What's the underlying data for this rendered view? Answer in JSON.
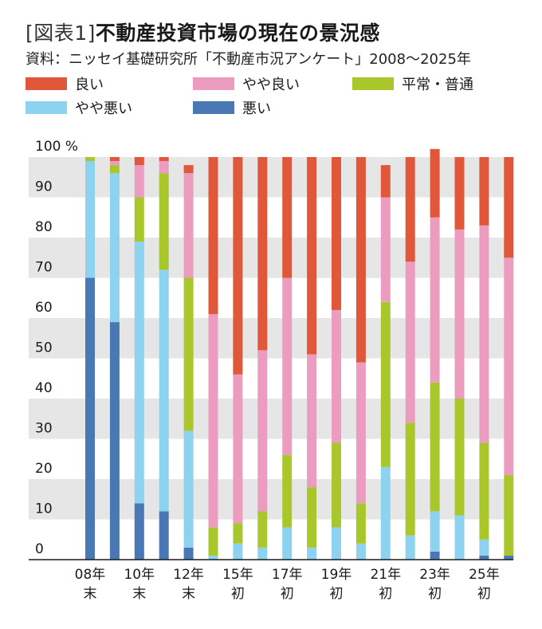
{
  "title": {
    "tag": "[図表1]",
    "main": "不動産投資市場の現在の景況感"
  },
  "source": "資料：ニッセイ基礎研究所「不動産市況アンケート」2008〜2025年",
  "colors": {
    "good": "#e0573a",
    "somewhat_good": "#ec9dbf",
    "normal": "#a9c72a",
    "somewhat_bad": "#8dd3ef",
    "bad": "#4a78b5",
    "band": "#e6e6e6"
  },
  "chart_data": {
    "type": "bar",
    "stacked": true,
    "y_unit": "%",
    "ylim": [
      0,
      100
    ],
    "yticks": [
      "0",
      "10",
      "20",
      "30",
      "40",
      "50",
      "60",
      "70",
      "80",
      "90",
      "100 %"
    ],
    "x_labels": [
      "08年\n末",
      "10年\n末",
      "12年\n末",
      "15年\n初",
      "17年\n初",
      "19年\n初",
      "21年\n初",
      "23年\n初",
      "25年\n初"
    ],
    "series": [
      {
        "key": "bad",
        "name": "悪い",
        "values": [
          70,
          59,
          14,
          12,
          3,
          0,
          0,
          0,
          0,
          0,
          0,
          0,
          0,
          0,
          2,
          0,
          1,
          1
        ]
      },
      {
        "key": "somewhat_bad",
        "name": "やや悪い",
        "values": [
          29,
          37,
          65,
          60,
          29,
          1,
          4,
          3,
          8,
          3,
          8,
          4,
          23,
          6,
          10,
          11,
          4,
          0
        ]
      },
      {
        "key": "normal",
        "name": "平常・普通",
        "values": [
          1,
          2,
          11,
          24,
          38,
          7,
          5,
          9,
          18,
          15,
          21,
          10,
          41,
          28,
          32,
          29,
          24,
          20
        ]
      },
      {
        "key": "somewhat_good",
        "name": "やや良い",
        "values": [
          0,
          1,
          8,
          3,
          26,
          53,
          37,
          40,
          44,
          33,
          33,
          35,
          26,
          40,
          41,
          42,
          54,
          54
        ]
      },
      {
        "key": "good",
        "name": "良い",
        "values": [
          0,
          1,
          2,
          1,
          2,
          39,
          54,
          48,
          30,
          49,
          38,
          51,
          8,
          26,
          17,
          18,
          17,
          25
        ]
      }
    ],
    "legend": [
      {
        "key": "good",
        "label": "良い"
      },
      {
        "key": "somewhat_good",
        "label": "やや良い"
      },
      {
        "key": "normal",
        "label": "平常・普通"
      },
      {
        "key": "somewhat_bad",
        "label": "やや悪い"
      },
      {
        "key": "bad",
        "label": "悪い"
      }
    ],
    "legend_position": "top",
    "grid": "alternating horizontal bands"
  }
}
